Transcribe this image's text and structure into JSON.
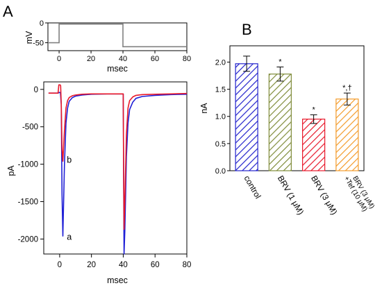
{
  "figure": {
    "panel_a_label": "A",
    "panel_b_label": "B"
  },
  "chart_data": [
    {
      "type": "line",
      "panel": "A-top",
      "xlabel": "msec",
      "ylabel": "mV",
      "xlim": [
        -7,
        80
      ],
      "ylim": [
        -70,
        0
      ],
      "xticks": [
        0,
        20,
        40,
        60,
        80
      ],
      "yticks": [
        0,
        -50
      ],
      "series": [
        {
          "color": "#808080",
          "x": [
            -7,
            0,
            0,
            40,
            40,
            80
          ],
          "y": [
            -50,
            -50,
            -3,
            -3,
            -60,
            -60
          ]
        }
      ]
    },
    {
      "type": "line",
      "panel": "A-bottom",
      "xlabel": "msec",
      "ylabel": "pA",
      "xlim": [
        -10,
        80
      ],
      "ylim": [
        -2200,
        100
      ],
      "xticks": [
        0,
        20,
        40,
        60,
        80
      ],
      "yticks": [
        0,
        -500,
        -1000,
        -1500,
        -2000
      ],
      "annotations": [
        {
          "text": "a",
          "x": 4.5,
          "y": -2010
        },
        {
          "text": "b",
          "x": 4.5,
          "y": -980
        }
      ],
      "series": [
        {
          "name": "a",
          "color": "#1f1fd6",
          "x": [
            -7,
            -1,
            -0.5,
            0,
            0.5,
            1,
            1.5,
            2,
            3,
            4,
            5,
            6,
            8,
            10,
            14,
            20,
            30,
            38,
            39.5,
            40,
            40.2,
            40.5,
            41,
            42,
            43,
            44,
            46,
            48,
            52,
            60,
            70,
            80
          ],
          "y": [
            -50,
            -50,
            -45,
            -40,
            -45,
            -200,
            -1400,
            -1960,
            -1000,
            -450,
            -250,
            -160,
            -110,
            -90,
            -75,
            -65,
            -60,
            -60,
            -60,
            -60,
            -1000,
            -2200,
            -1900,
            -900,
            -450,
            -270,
            -170,
            -120,
            -95,
            -80,
            -70,
            -65
          ]
        },
        {
          "name": "b",
          "color": "#e8182a",
          "x": [
            -7,
            -1,
            -0.5,
            0,
            0.3,
            0.6,
            1,
            1.5,
            2,
            3,
            4,
            5,
            6,
            8,
            10,
            14,
            20,
            30,
            38,
            39.5,
            40,
            40.2,
            40.5,
            41,
            42,
            43,
            44,
            46,
            48,
            52,
            60,
            70,
            80
          ],
          "y": [
            -50,
            -50,
            60,
            60,
            60,
            50,
            -200,
            -800,
            -960,
            -550,
            -250,
            -150,
            -110,
            -85,
            -75,
            -65,
            -60,
            -60,
            -60,
            -60,
            -60,
            -900,
            -1870,
            -1500,
            -600,
            -250,
            -150,
            -100,
            -80,
            -70,
            -65,
            -60,
            -55
          ]
        }
      ]
    },
    {
      "type": "bar",
      "panel": "B",
      "ylabel": "nA",
      "ylim": [
        0,
        2.3
      ],
      "yticks": [
        "0.0",
        "0.5",
        "1.0",
        "1.5",
        "2.0"
      ],
      "categories": [
        "control",
        "BRV (1 μM)",
        "BRV (3 μM)",
        "BRV (3 μM) +Tef (10 μM)"
      ],
      "values": [
        1.97,
        1.78,
        0.95,
        1.32
      ],
      "errors": [
        0.14,
        0.13,
        0.08,
        0.11
      ],
      "colors": [
        "#2222cc",
        "#7f8c3a",
        "#e8182a",
        "#f39b2a"
      ],
      "sig_labels": [
        "",
        "*",
        "*",
        "*,†"
      ]
    }
  ]
}
